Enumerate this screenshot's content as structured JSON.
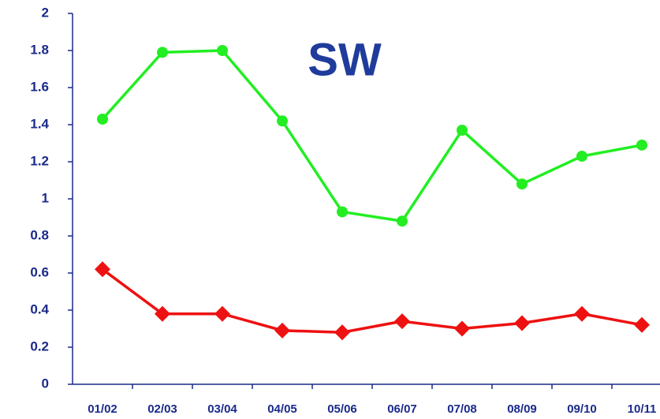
{
  "chart_data": {
    "type": "line",
    "title": "SW",
    "categories": [
      "01/02",
      "02/03",
      "03/04",
      "04/05",
      "05/06",
      "06/07",
      "07/08",
      "08/09",
      "09/10",
      "10/11"
    ],
    "series": [
      {
        "color": "#22ee22",
        "marker": "circle",
        "values": [
          1.43,
          1.79,
          1.8,
          1.42,
          0.93,
          0.88,
          1.37,
          1.08,
          1.23,
          1.29
        ]
      },
      {
        "color": "#ee1111",
        "marker": "diamond",
        "values": [
          0.62,
          0.38,
          0.38,
          0.29,
          0.28,
          0.34,
          0.3,
          0.33,
          0.38,
          0.32
        ]
      }
    ],
    "ylim": [
      0,
      2
    ],
    "yticks": [
      0,
      0.2,
      0.4,
      0.6,
      0.8,
      1,
      1.2,
      1.4,
      1.6,
      1.8,
      2
    ]
  }
}
